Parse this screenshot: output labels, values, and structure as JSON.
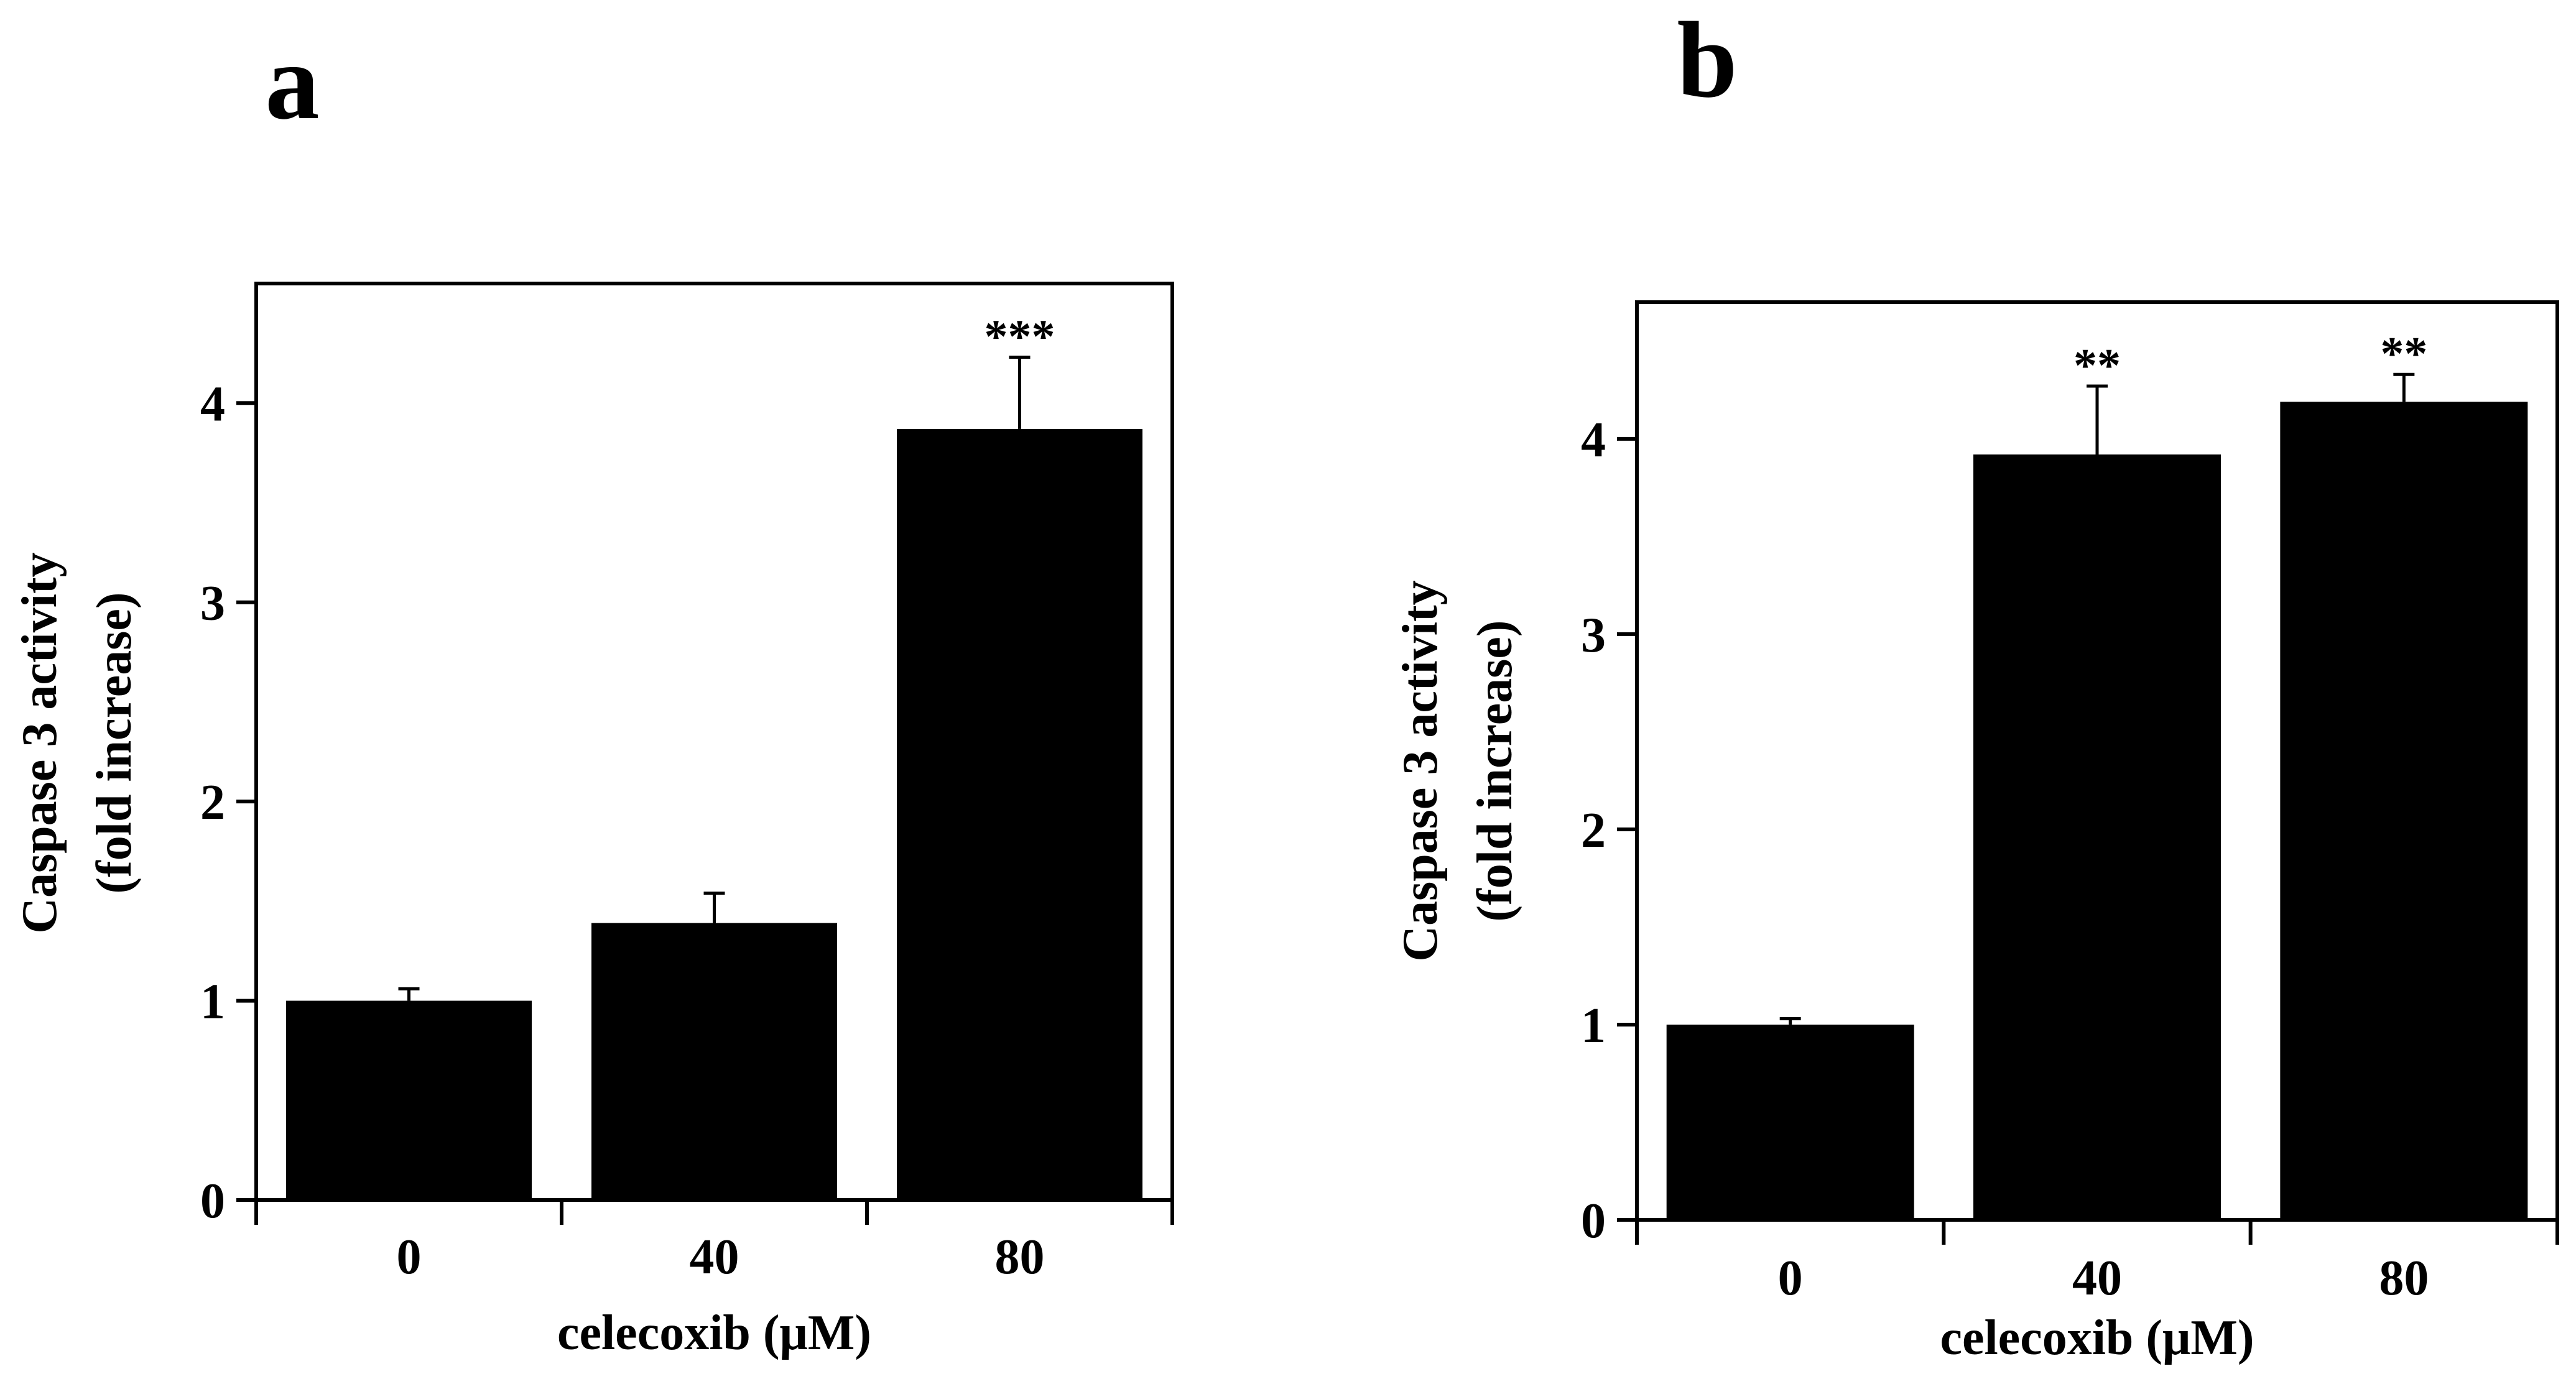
{
  "chart_data": [
    {
      "type": "bar",
      "panel": "a",
      "title": "",
      "xlabel": "celecoxib (μM)",
      "ylabel_lines": [
        "Caspase 3 activity",
        "(fold increase)"
      ],
      "categories": [
        "0",
        "40",
        "80"
      ],
      "values": [
        1.0,
        1.39,
        3.87
      ],
      "errors": [
        0.06,
        0.15,
        0.36
      ],
      "significance": [
        "",
        "",
        "***"
      ],
      "ylim": [
        0,
        4.6
      ],
      "yticks": [
        0,
        1,
        2,
        3,
        4
      ],
      "ytick_labels": [
        "0",
        "1",
        "2",
        "3",
        "4"
      ],
      "bar_color": "#000000",
      "grid": false
    },
    {
      "type": "bar",
      "panel": "b",
      "title": "",
      "xlabel": "celecoxib (μM)",
      "ylabel_lines": [
        "Caspase 3 activity",
        "(fold increase)"
      ],
      "categories": [
        "0",
        "40",
        "80"
      ],
      "values": [
        1.0,
        3.92,
        4.19
      ],
      "errors": [
        0.03,
        0.35,
        0.14
      ],
      "significance": [
        "",
        "**",
        "**"
      ],
      "ylim": [
        0,
        4.7
      ],
      "yticks": [
        0,
        1,
        2,
        3,
        4
      ],
      "ytick_labels": [
        "0",
        "1",
        "2",
        "3",
        "4"
      ],
      "bar_color": "#000000",
      "grid": false
    }
  ]
}
